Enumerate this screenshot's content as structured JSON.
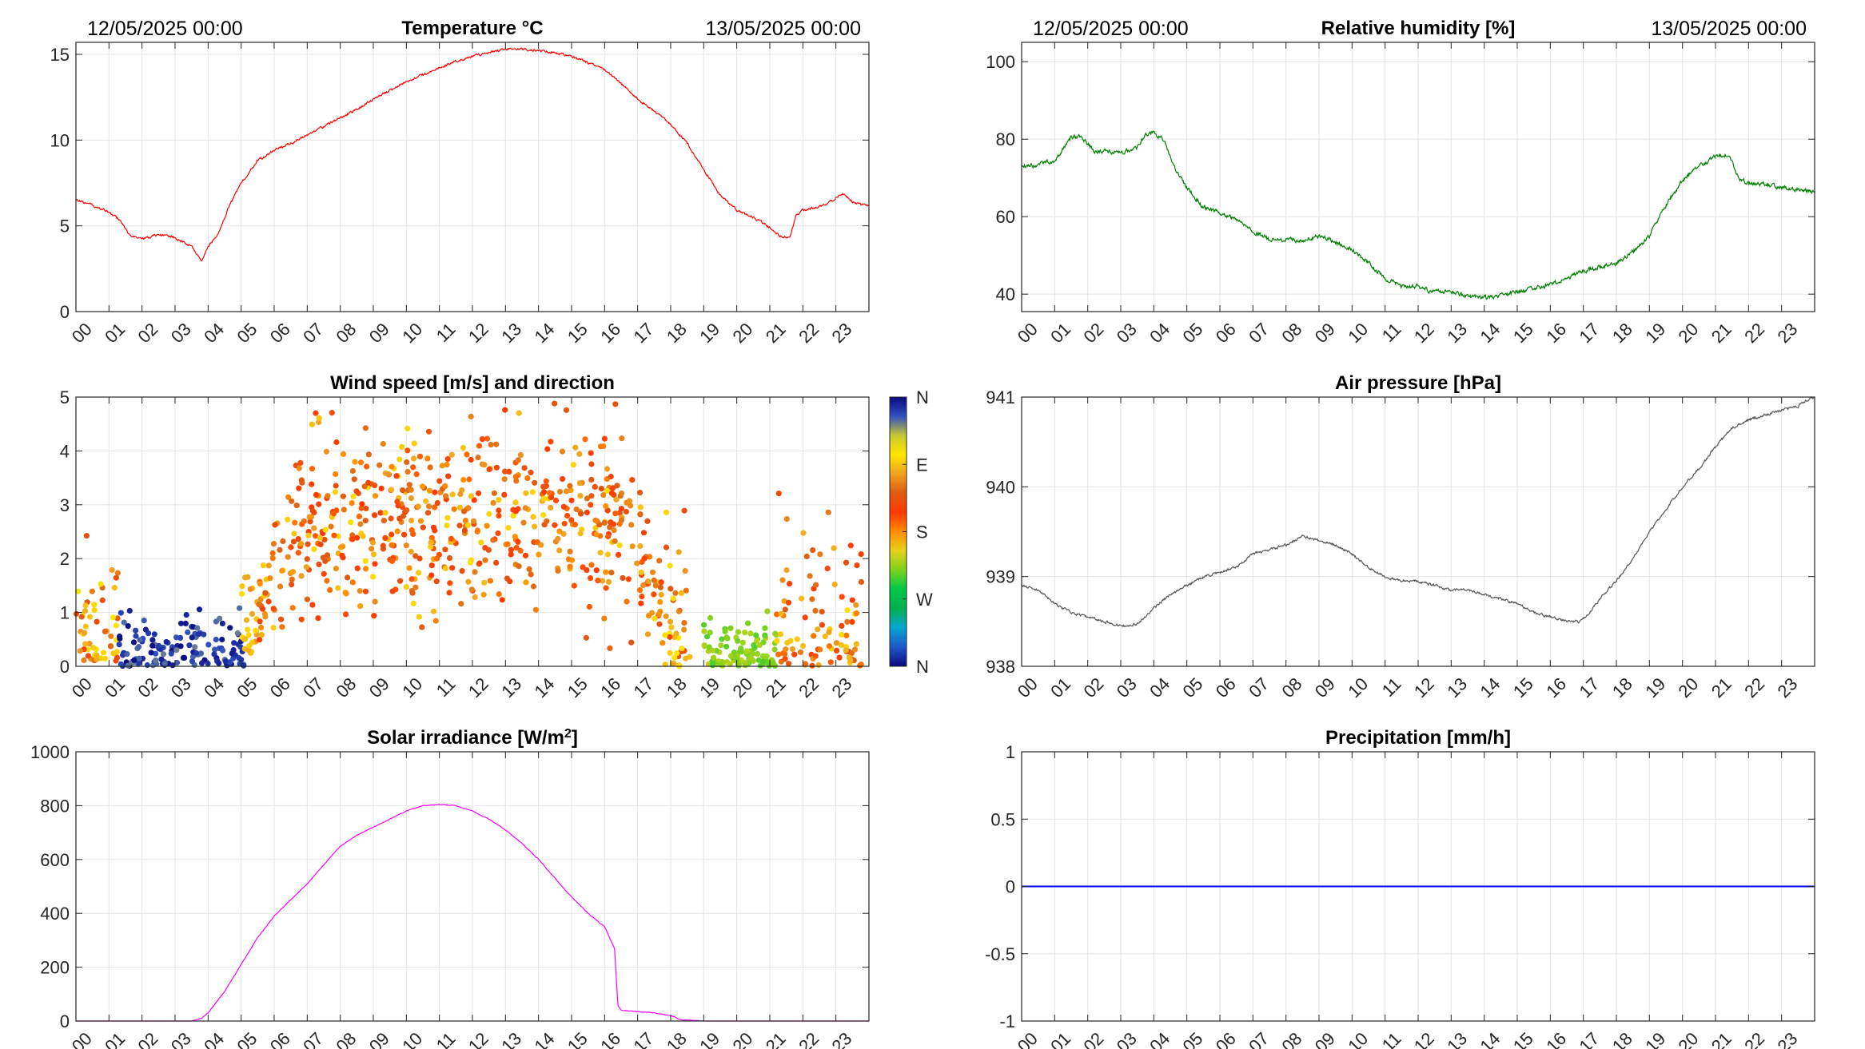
{
  "figure": {
    "hour_labels": [
      "00",
      "01",
      "02",
      "03",
      "04",
      "05",
      "06",
      "07",
      "08",
      "09",
      "10",
      "11",
      "12",
      "13",
      "14",
      "15",
      "16",
      "17",
      "18",
      "19",
      "20",
      "21",
      "22",
      "23"
    ]
  },
  "chart_data": [
    {
      "id": "temperature",
      "type": "line",
      "title": "Temperature °C",
      "date_left": "12/05/2025 00:00",
      "date_right": "13/05/2025 00:00",
      "xlabel": "",
      "ylabel": "",
      "xlim": [
        0,
        24
      ],
      "ylim": [
        0,
        15.7
      ],
      "yticks": [
        0,
        5,
        10,
        15
      ],
      "ytick_labels": [
        "0",
        "5",
        "10",
        "15"
      ],
      "grid": true,
      "noise": 0.12,
      "series": [
        {
          "color": "#ff0000",
          "x": [
            0,
            0.5,
            1,
            1.3,
            1.6,
            2,
            2.5,
            3,
            3.5,
            3.8,
            4,
            4.3,
            4.6,
            5,
            5.5,
            6,
            6.5,
            7,
            7.5,
            8,
            8.5,
            9,
            9.5,
            10,
            10.5,
            11,
            11.5,
            12,
            12.5,
            13,
            13.5,
            14,
            14.5,
            15,
            15.5,
            16,
            16.5,
            17,
            17.5,
            18,
            18.5,
            19,
            19.5,
            20,
            20.5,
            21,
            21.3,
            21.6,
            21.8,
            22,
            22.5,
            23,
            23.2,
            23.5,
            23.9
          ],
          "y": [
            6.5,
            6.2,
            5.8,
            5.4,
            4.5,
            4.2,
            4.5,
            4.3,
            3.8,
            2.9,
            3.8,
            4.5,
            6.0,
            7.5,
            8.8,
            9.4,
            9.8,
            10.3,
            10.8,
            11.3,
            11.8,
            12.4,
            12.9,
            13.4,
            13.8,
            14.2,
            14.6,
            14.9,
            15.1,
            15.3,
            15.3,
            15.2,
            15.1,
            14.9,
            14.5,
            14.1,
            13.3,
            12.4,
            11.7,
            10.9,
            9.8,
            8.3,
            6.8,
            5.9,
            5.5,
            4.9,
            4.4,
            4.3,
            5.6,
            5.9,
            6.1,
            6.6,
            6.9,
            6.4,
            6.2
          ]
        }
      ]
    },
    {
      "id": "humidity",
      "type": "line",
      "title": "Relative humidity [%]",
      "date_left": "12/05/2025 00:00",
      "date_right": "13/05/2025 00:00",
      "xlabel": "",
      "ylabel": "",
      "xlim": [
        0,
        24
      ],
      "ylim": [
        35.5,
        105
      ],
      "yticks": [
        40,
        60,
        80,
        100
      ],
      "ytick_labels": [
        "40",
        "60",
        "80",
        "100"
      ],
      "grid": true,
      "noise": 1.0,
      "series": [
        {
          "color": "#007f00",
          "x": [
            0,
            0.5,
            1,
            1.2,
            1.5,
            1.8,
            2.2,
            2.5,
            3,
            3.5,
            3.8,
            4,
            4.3,
            4.6,
            5,
            5.5,
            6,
            6.5,
            7,
            7.5,
            8,
            8.5,
            9,
            9.5,
            10,
            10.5,
            11,
            11.5,
            12,
            12.5,
            13,
            13.5,
            14,
            14.5,
            15,
            15.5,
            16,
            16.5,
            17,
            17.5,
            18,
            18.5,
            19,
            19.5,
            20,
            20.5,
            21,
            21.4,
            21.7,
            22,
            22.5,
            23,
            23.5,
            23.9
          ],
          "y": [
            73,
            73.5,
            74.5,
            77,
            80.5,
            80.5,
            77,
            77,
            76.5,
            78,
            81.5,
            81.5,
            80,
            73,
            67.5,
            62.5,
            61,
            59.5,
            56.5,
            54,
            54,
            54,
            55,
            53.5,
            51.5,
            48,
            44,
            42,
            42,
            40.5,
            40.5,
            39.5,
            39,
            39.5,
            40.5,
            41.5,
            42.5,
            44,
            46,
            47,
            48,
            51,
            55,
            63,
            69.5,
            73,
            75.5,
            76,
            70,
            68.5,
            68.5,
            67.5,
            67,
            66.5
          ]
        }
      ]
    },
    {
      "id": "wind",
      "type": "scatter",
      "title": "Wind speed [m/s] and direction",
      "xlabel": "",
      "ylabel": "",
      "xlim": [
        0,
        24
      ],
      "ylim": [
        0,
        5
      ],
      "yticks": [
        0,
        1,
        2,
        3,
        4,
        5
      ],
      "ytick_labels": [
        "0",
        "1",
        "2",
        "3",
        "4",
        "5"
      ],
      "grid": true,
      "colorbar_labels": [
        "N",
        "W",
        "S",
        "E",
        "N"
      ],
      "colorbar_colors": [
        "#0a0a80",
        "#1f57c8",
        "#06a6d0",
        "#00b050",
        "#00c84a",
        "#7ad21e",
        "#e8d21a",
        "#ff8c00",
        "#ff3a00",
        "#e05a10",
        "#f0a020",
        "#ffe600",
        "#c8c830",
        "#3050c0",
        "#0a0a80"
      ],
      "segments": [
        {
          "x": [
            0,
            1.3
          ],
          "speed": [
            0.1,
            1.8
          ],
          "dir": [
            0.6,
            0.8
          ],
          "n": 55
        },
        {
          "x": [
            1.3,
            5.1
          ],
          "speed": [
            0.0,
            0.8
          ],
          "dir": [
            0.9,
            1.0
          ],
          "n": 140
        },
        {
          "x": [
            5.0,
            5.5
          ],
          "speed": [
            0.2,
            1.4
          ],
          "dir": [
            0.7,
            0.78
          ],
          "n": 25
        },
        {
          "x": [
            5.5,
            17.8
          ],
          "speed": [
            0.8,
            4.6
          ],
          "dir": [
            0.48,
            0.78
          ],
          "n": 620
        },
        {
          "x": [
            17.8,
            18.6
          ],
          "speed": [
            0.0,
            2.0
          ],
          "dir": [
            0.6,
            0.8
          ],
          "n": 40
        },
        {
          "x": [
            19.0,
            21.2
          ],
          "speed": [
            0.0,
            0.7
          ],
          "dir": [
            0.33,
            0.4
          ],
          "n": 110
        },
        {
          "x": [
            21.2,
            23.8
          ],
          "speed": [
            0.0,
            2.2
          ],
          "dir": [
            0.5,
            0.78
          ],
          "n": 95
        }
      ]
    },
    {
      "id": "pressure",
      "type": "line",
      "title": "Air pressure [hPa]",
      "xlabel": "",
      "ylabel": "",
      "xlim": [
        0,
        24
      ],
      "ylim": [
        938,
        941
      ],
      "yticks": [
        938,
        939,
        940,
        941
      ],
      "ytick_labels": [
        "938",
        "939",
        "940",
        "941"
      ],
      "grid": true,
      "noise": 0.025,
      "series": [
        {
          "color": "#555555",
          "x": [
            0,
            0.5,
            1,
            1.5,
            2,
            2.5,
            3,
            3.3,
            3.6,
            4,
            4.5,
            5,
            5.5,
            6,
            6.5,
            7,
            7.5,
            8,
            8.5,
            9,
            9.5,
            10,
            10.5,
            11,
            11.5,
            12,
            12.5,
            13,
            13.5,
            14,
            14.5,
            15,
            15.5,
            16,
            16.5,
            16.9,
            17.2,
            17.5,
            18,
            18.5,
            19,
            19.5,
            20,
            20.5,
            21,
            21.5,
            22,
            22.5,
            23,
            23.5,
            23.9
          ],
          "y": [
            938.9,
            938.85,
            938.7,
            938.6,
            938.55,
            938.5,
            938.45,
            938.45,
            938.5,
            938.65,
            938.8,
            938.9,
            939.0,
            939.05,
            939.1,
            939.25,
            939.3,
            939.35,
            939.45,
            939.4,
            939.35,
            939.25,
            939.1,
            939.0,
            938.95,
            938.95,
            938.9,
            938.85,
            938.85,
            938.8,
            938.75,
            938.7,
            938.6,
            938.55,
            938.5,
            938.5,
            938.6,
            938.75,
            938.95,
            939.2,
            939.5,
            939.75,
            940.0,
            940.2,
            940.45,
            940.65,
            940.75,
            940.8,
            940.85,
            940.9,
            941.0
          ]
        }
      ]
    },
    {
      "id": "solar",
      "type": "line",
      "title": "Solar irradiance [W/m",
      "title_sup": "2",
      "title_end": "]",
      "xlabel": "",
      "ylabel": "",
      "xlim": [
        0,
        24
      ],
      "ylim": [
        0,
        1000
      ],
      "yticks": [
        0,
        200,
        400,
        600,
        800,
        1000
      ],
      "ytick_labels": [
        "0",
        "200",
        "400",
        "600",
        "800",
        "1000"
      ],
      "grid": true,
      "noise": 2,
      "series": [
        {
          "color": "#ff00ff",
          "x": [
            0,
            3.5,
            3.8,
            4,
            4.5,
            5,
            5.5,
            6,
            6.5,
            7,
            7.5,
            8,
            8.5,
            9,
            9.5,
            10,
            10.5,
            11,
            11.5,
            12,
            12.5,
            13,
            13.5,
            14,
            14.5,
            15,
            15.5,
            16,
            16.3,
            16.4,
            16.5,
            17,
            17.5,
            18,
            18.3,
            19,
            24
          ],
          "y": [
            0,
            0,
            10,
            30,
            110,
            210,
            310,
            390,
            450,
            510,
            580,
            650,
            690,
            720,
            750,
            780,
            800,
            805,
            800,
            780,
            750,
            710,
            660,
            600,
            530,
            460,
            400,
            350,
            270,
            60,
            40,
            35,
            30,
            20,
            5,
            0,
            0
          ]
        }
      ]
    },
    {
      "id": "precipitation",
      "type": "line",
      "title": "Precipitation [mm/h]",
      "xlabel": "",
      "ylabel": "",
      "xlim": [
        0,
        24
      ],
      "ylim": [
        -1,
        1
      ],
      "yticks": [
        -1,
        -0.5,
        0,
        0.5,
        1
      ],
      "ytick_labels": [
        "-1",
        "-0.5",
        "0",
        "0.5",
        "1"
      ],
      "grid": true,
      "noise": 0,
      "series": [
        {
          "color": "#0000ff",
          "x": [
            0,
            24
          ],
          "y": [
            0,
            0
          ]
        }
      ]
    }
  ]
}
